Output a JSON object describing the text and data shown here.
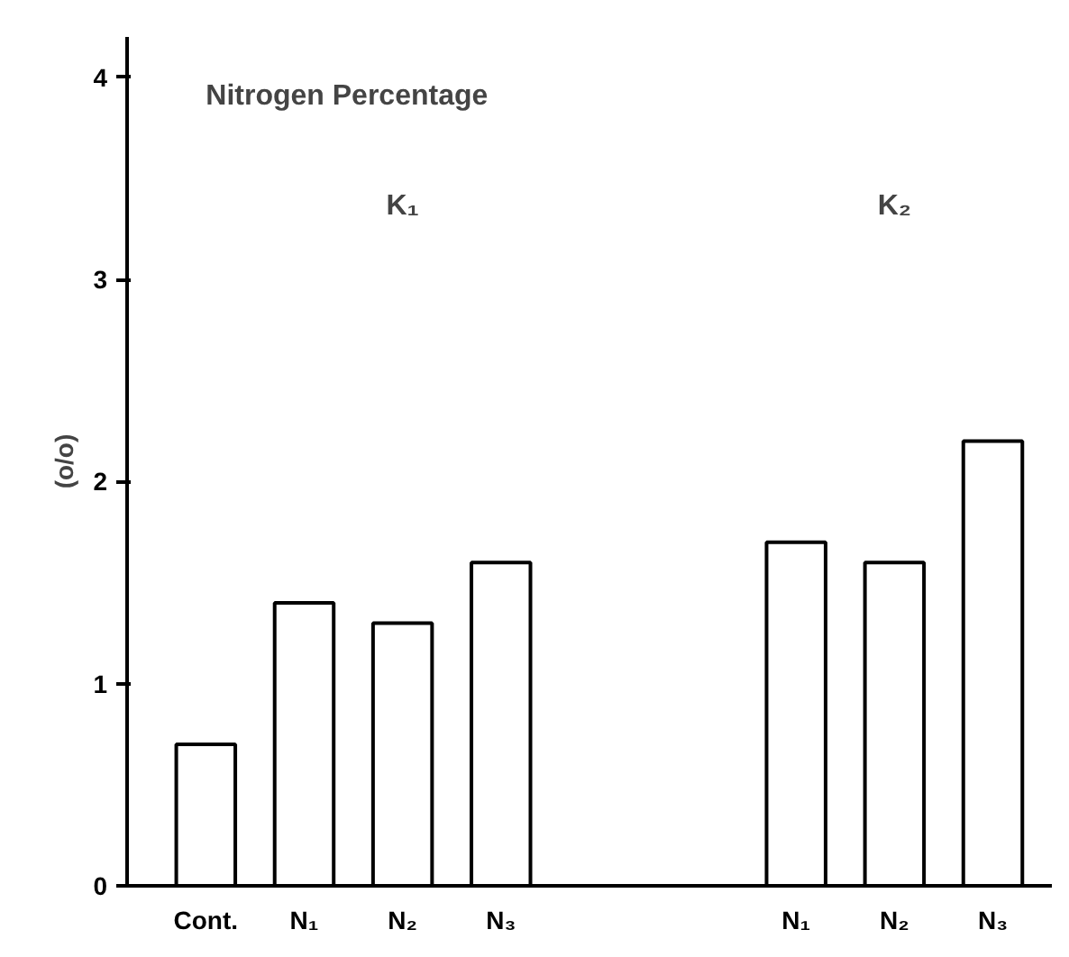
{
  "chart_data": {
    "type": "bar",
    "title": "Nitrogen Percentage",
    "ylabel": "(o/o)",
    "categories": [
      "Cont.",
      "N₁",
      "N₂",
      "N₃",
      null,
      null,
      "N₁",
      "N₂",
      "N₃"
    ],
    "values": [
      0.7,
      1.4,
      1.3,
      1.6,
      null,
      null,
      1.7,
      1.6,
      2.2
    ],
    "color": "#ffffff",
    "ylim": [
      0,
      4.2
    ],
    "yticks": [
      0,
      1,
      2,
      3,
      4
    ],
    "annotations": [
      "K₁",
      "K₂"
    ],
    "grid": false
  }
}
